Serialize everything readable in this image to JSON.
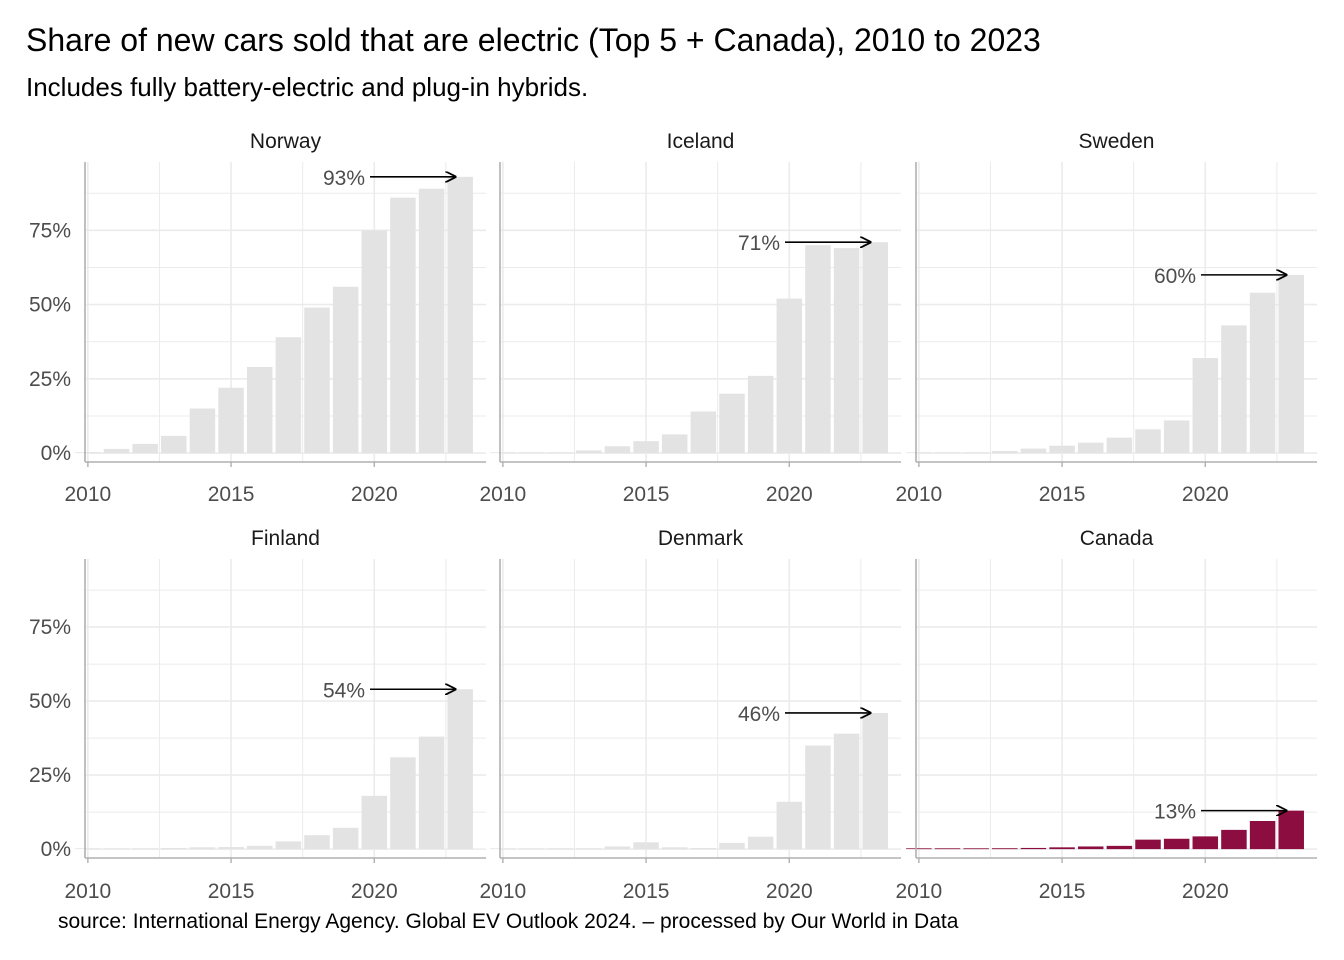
{
  "title": "Share of new cars sold that are electric (Top 5 + Canada), 2010 to 2023",
  "subtitle": "Includes fully battery-electric and plug-in hybrids.",
  "caption": "source: International Energy Agency. Global EV Outlook 2024. – processed by Our World in Data",
  "colors": {
    "default_bar": "#e3e3e3",
    "highlight_bar": "#8c0d3f",
    "grid": "#ebebeb",
    "axis": "#b0b0b0",
    "tick_text": "#4d4d4d"
  },
  "chart_data": {
    "type": "bar",
    "facet_layout": "3 columns x 2 rows",
    "x_ticks": [
      2010,
      2015,
      2020
    ],
    "xlim": [
      2009.9,
      2023.9
    ],
    "y_ticks": [
      0,
      25,
      50,
      75
    ],
    "y_tick_labels": [
      "0%",
      "25%",
      "50%",
      "75%"
    ],
    "ylim": [
      -3,
      98
    ],
    "grid": true,
    "highlight": "Canada",
    "series": [
      {
        "name": "Norway",
        "x": [
          2010,
          2011,
          2012,
          2013,
          2014,
          2015,
          2016,
          2017,
          2018,
          2019,
          2020,
          2021,
          2022,
          2023
        ],
        "values": [
          0.3,
          1.4,
          3.1,
          5.8,
          15,
          22,
          29,
          39,
          49,
          56,
          75,
          86,
          89,
          93
        ],
        "label": "93%"
      },
      {
        "name": "Iceland",
        "x": [
          2010,
          2011,
          2012,
          2013,
          2014,
          2015,
          2016,
          2017,
          2018,
          2019,
          2020,
          2021,
          2022,
          2023
        ],
        "values": [
          0,
          0.1,
          0.2,
          0.9,
          2.3,
          4,
          6.3,
          14,
          20,
          26,
          52,
          70,
          69,
          71
        ],
        "label": "71%"
      },
      {
        "name": "Sweden",
        "x": [
          2010,
          2011,
          2012,
          2013,
          2014,
          2015,
          2016,
          2017,
          2018,
          2019,
          2020,
          2021,
          2022,
          2023
        ],
        "values": [
          0,
          0.1,
          0.1,
          0.7,
          1.5,
          2.5,
          3.5,
          5.2,
          8,
          11,
          32,
          43,
          54,
          60
        ],
        "label": "60%"
      },
      {
        "name": "Finland",
        "x": [
          2010,
          2011,
          2012,
          2013,
          2014,
          2015,
          2016,
          2017,
          2018,
          2019,
          2020,
          2021,
          2022,
          2023
        ],
        "values": [
          0,
          0.1,
          0.2,
          0.4,
          0.6,
          0.7,
          1.1,
          2.6,
          4.7,
          7.2,
          18,
          31,
          38,
          54
        ],
        "label": "54%"
      },
      {
        "name": "Denmark",
        "x": [
          2010,
          2011,
          2012,
          2013,
          2014,
          2015,
          2016,
          2017,
          2018,
          2019,
          2020,
          2021,
          2022,
          2023
        ],
        "values": [
          0,
          0.2,
          0.3,
          0.3,
          0.9,
          2.3,
          0.6,
          0.4,
          2.1,
          4.2,
          16,
          35,
          39,
          46
        ],
        "label": "46%"
      },
      {
        "name": "Canada",
        "x": [
          2010,
          2011,
          2012,
          2013,
          2014,
          2015,
          2016,
          2017,
          2018,
          2019,
          2020,
          2021,
          2022,
          2023
        ],
        "values": [
          0.1,
          0.2,
          0.2,
          0.3,
          0.4,
          0.6,
          0.9,
          1.1,
          3.2,
          3.5,
          4.3,
          6.5,
          9.5,
          13
        ],
        "label": "13%"
      }
    ]
  }
}
